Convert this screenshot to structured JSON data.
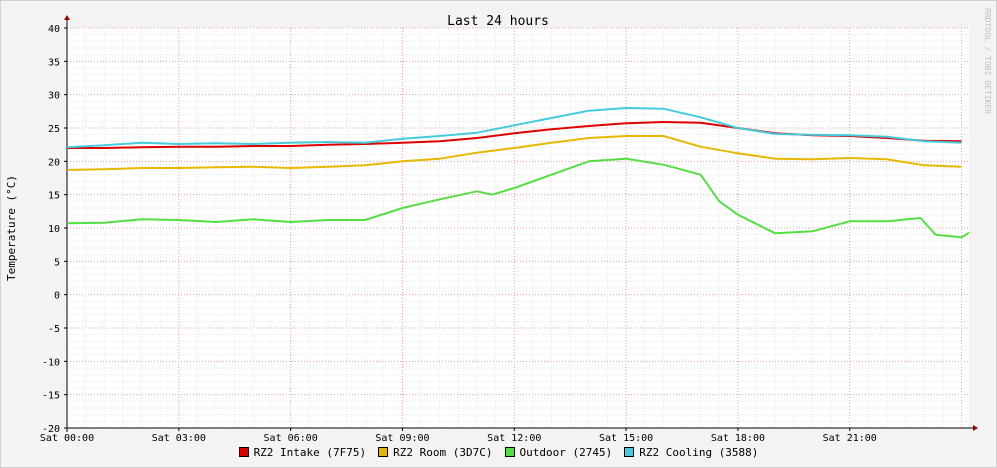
{
  "chart_data": {
    "type": "line",
    "title": "Last 24 hours",
    "ylabel": "Temperature (°C)",
    "xlabel": "",
    "watermark": "RRDTOOL / TOBI OETIKER",
    "ylim": [
      -20,
      40
    ],
    "yticks": [
      "40",
      "35",
      "30",
      "25",
      "20",
      "15",
      "10",
      "5",
      "0",
      "-5",
      "-10",
      "-15",
      "-20"
    ],
    "xlim": [
      0,
      24.2
    ],
    "xticks": [
      {
        "x": 0,
        "label": "Sat 00:00"
      },
      {
        "x": 3,
        "label": "Sat 03:00"
      },
      {
        "x": 6,
        "label": "Sat 06:00"
      },
      {
        "x": 9,
        "label": "Sat 09:00"
      },
      {
        "x": 12,
        "label": "Sat 12:00"
      },
      {
        "x": 15,
        "label": "Sat 15:00"
      },
      {
        "x": 18,
        "label": "Sat 18:00"
      },
      {
        "x": 21,
        "label": "Sat 21:00"
      }
    ],
    "grid": true,
    "legend_position": "bottom",
    "series": [
      {
        "name": "RZ2 Intake (7F75)",
        "color": "#e00000",
        "points": [
          [
            0,
            22.0
          ],
          [
            1,
            22.0
          ],
          [
            2,
            22.1
          ],
          [
            3,
            22.2
          ],
          [
            4,
            22.2
          ],
          [
            5,
            22.3
          ],
          [
            6,
            22.3
          ],
          [
            7,
            22.5
          ],
          [
            8,
            22.6
          ],
          [
            9,
            22.8
          ],
          [
            10,
            23.0
          ],
          [
            11,
            23.5
          ],
          [
            12,
            24.2
          ],
          [
            13,
            24.8
          ],
          [
            14,
            25.3
          ],
          [
            15,
            25.7
          ],
          [
            16,
            25.9
          ],
          [
            17,
            25.8
          ],
          [
            18,
            25.0
          ],
          [
            19,
            24.2
          ],
          [
            20,
            23.9
          ],
          [
            21,
            23.8
          ],
          [
            22,
            23.5
          ],
          [
            23,
            23.1
          ],
          [
            24,
            23.0
          ]
        ]
      },
      {
        "name": "RZ2 Room (3D7C)",
        "color": "#e6b800",
        "points": [
          [
            0,
            18.7
          ],
          [
            1,
            18.8
          ],
          [
            2,
            19.0
          ],
          [
            3,
            19.0
          ],
          [
            4,
            19.1
          ],
          [
            5,
            19.2
          ],
          [
            6,
            19.0
          ],
          [
            7,
            19.2
          ],
          [
            8,
            19.4
          ],
          [
            9,
            20.0
          ],
          [
            10,
            20.4
          ],
          [
            11,
            21.3
          ],
          [
            12,
            22.0
          ],
          [
            13,
            22.8
          ],
          [
            14,
            23.5
          ],
          [
            15,
            23.8
          ],
          [
            16,
            23.8
          ],
          [
            17,
            22.2
          ],
          [
            18,
            21.2
          ],
          [
            19,
            20.4
          ],
          [
            20,
            20.3
          ],
          [
            21,
            20.5
          ],
          [
            22,
            20.3
          ],
          [
            23,
            19.4
          ],
          [
            24,
            19.2
          ]
        ]
      },
      {
        "name": "Outdoor (2745)",
        "color": "#55dd44",
        "points": [
          [
            0,
            10.7
          ],
          [
            1,
            10.8
          ],
          [
            2,
            11.3
          ],
          [
            3,
            11.2
          ],
          [
            4,
            10.9
          ],
          [
            5,
            11.3
          ],
          [
            6,
            10.9
          ],
          [
            7,
            11.2
          ],
          [
            8,
            11.2
          ],
          [
            9,
            13.0
          ],
          [
            10,
            14.3
          ],
          [
            11,
            15.5
          ],
          [
            11.4,
            15.0
          ],
          [
            12,
            16.0
          ],
          [
            13,
            18.0
          ],
          [
            14,
            20.0
          ],
          [
            15,
            20.4
          ],
          [
            16,
            19.5
          ],
          [
            17,
            18.0
          ],
          [
            17.5,
            14.0
          ],
          [
            18,
            12.0
          ],
          [
            19,
            9.2
          ],
          [
            20,
            9.5
          ],
          [
            21,
            11.0
          ],
          [
            22,
            11.0
          ],
          [
            22.9,
            11.5
          ],
          [
            23.3,
            9.0
          ],
          [
            24,
            8.6
          ],
          [
            24.2,
            9.3
          ]
        ]
      },
      {
        "name": "RZ2 Cooling (3588)",
        "color": "#44ccdd",
        "points": [
          [
            0,
            22.1
          ],
          [
            1,
            22.4
          ],
          [
            2,
            22.8
          ],
          [
            3,
            22.6
          ],
          [
            4,
            22.7
          ],
          [
            5,
            22.6
          ],
          [
            6,
            22.8
          ],
          [
            7,
            22.9
          ],
          [
            8,
            22.8
          ],
          [
            9,
            23.4
          ],
          [
            10,
            23.8
          ],
          [
            11,
            24.3
          ],
          [
            12,
            25.4
          ],
          [
            13,
            26.5
          ],
          [
            14,
            27.6
          ],
          [
            15,
            28.0
          ],
          [
            16,
            27.9
          ],
          [
            17,
            26.6
          ],
          [
            18,
            25.0
          ],
          [
            19,
            24.1
          ],
          [
            20,
            24.0
          ],
          [
            21,
            23.9
          ],
          [
            22,
            23.7
          ],
          [
            23,
            23.0
          ],
          [
            24,
            22.8
          ]
        ]
      }
    ]
  }
}
